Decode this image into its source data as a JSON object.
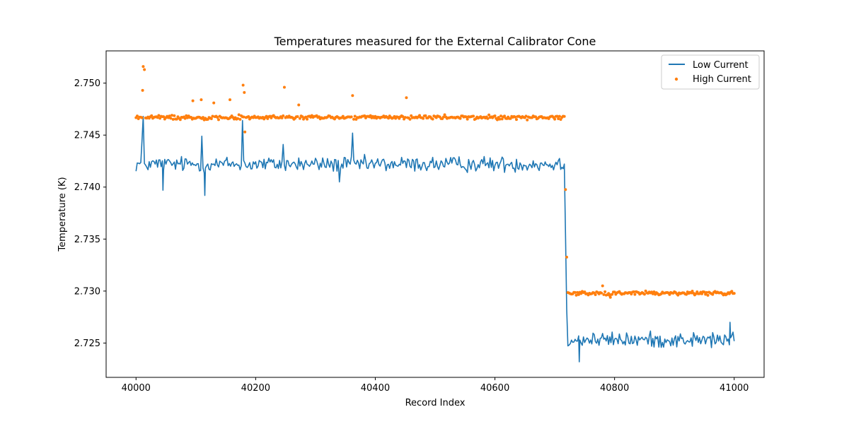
{
  "chart_data": {
    "type": "line+scatter",
    "title": "Temperatures measured for the External Calibrator Cone",
    "xlabel": "Record Index",
    "ylabel": "Temperature (K)",
    "xlim": [
      39950,
      41050
    ],
    "ylim": [
      2.7217,
      2.7531
    ],
    "xticks": [
      40000,
      40200,
      40400,
      40600,
      40800,
      41000
    ],
    "xtick_labels": [
      "40000",
      "40200",
      "40400",
      "40600",
      "40800",
      "41000"
    ],
    "yticks": [
      2.725,
      2.73,
      2.735,
      2.74,
      2.745,
      2.75
    ],
    "ytick_labels": [
      "2.725",
      "2.730",
      "2.735",
      "2.740",
      "2.745",
      "2.750"
    ],
    "grid": false,
    "legend_position": "top-right",
    "x_start": 40000,
    "x_end": 41000,
    "step_index": 40717,
    "series": [
      {
        "name": "Low Current",
        "kind": "line",
        "color": "#1f77b4",
        "base_before": 2.7422,
        "base_after": 2.7253,
        "noise_amplitude": 0.0011,
        "spikes": [
          {
            "x": 40012,
            "y": 2.7468
          },
          {
            "x": 40010,
            "y": 2.7445
          },
          {
            "x": 40110,
            "y": 2.7449
          },
          {
            "x": 40115,
            "y": 2.7392
          },
          {
            "x": 40178,
            "y": 2.7464
          },
          {
            "x": 40045,
            "y": 2.7397
          },
          {
            "x": 40246,
            "y": 2.7441
          },
          {
            "x": 40362,
            "y": 2.7452
          },
          {
            "x": 40340,
            "y": 2.7405
          },
          {
            "x": 40741,
            "y": 2.7232
          },
          {
            "x": 40993,
            "y": 2.727
          }
        ]
      },
      {
        "name": "High Current",
        "kind": "scatter",
        "color": "#ff7f0e",
        "base_before": 2.7467,
        "base_after": 2.7298,
        "noise_amplitude": 0.0003,
        "spikes": [
          {
            "x": 40012,
            "y": 2.7516
          },
          {
            "x": 40014,
            "y": 2.7513
          },
          {
            "x": 40011,
            "y": 2.7493
          },
          {
            "x": 40179,
            "y": 2.7498
          },
          {
            "x": 40181,
            "y": 2.7491
          },
          {
            "x": 40248,
            "y": 2.7496
          },
          {
            "x": 40362,
            "y": 2.7488
          },
          {
            "x": 40452,
            "y": 2.7486
          },
          {
            "x": 40157,
            "y": 2.7484
          },
          {
            "x": 40095,
            "y": 2.7483
          },
          {
            "x": 40109,
            "y": 2.7484
          },
          {
            "x": 40130,
            "y": 2.7481
          },
          {
            "x": 40272,
            "y": 2.7479
          },
          {
            "x": 40182,
            "y": 2.7453
          },
          {
            "x": 40780,
            "y": 2.7305
          },
          {
            "x": 40793,
            "y": 2.7294
          }
        ]
      }
    ]
  }
}
